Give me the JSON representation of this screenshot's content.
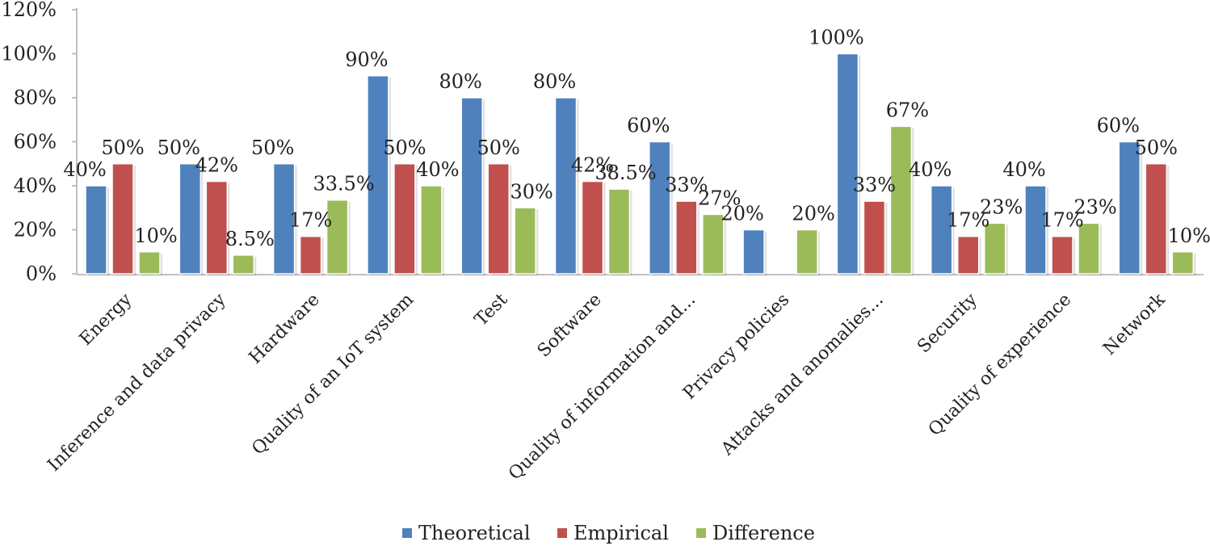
{
  "chart_data": {
    "type": "bar",
    "title": "",
    "xlabel": "",
    "ylabel": "",
    "ylim": [
      0,
      120
    ],
    "yticks": [
      "0%",
      "20%",
      "40%",
      "60%",
      "80%",
      "100%",
      "120%"
    ],
    "grid": false,
    "legend_position": "bottom",
    "categories": [
      "Energy",
      "Inference and data privacy",
      "Hardware",
      "Quality of an IoT system",
      "Test",
      "Software",
      "Quality of information and...",
      "Privacy policies",
      "Attacks and anomalies...",
      "Security",
      "Quality of experience",
      "Network"
    ],
    "series": [
      {
        "name": "Theoretical",
        "color": "#4F81BD",
        "values": [
          40,
          50,
          50,
          90,
          80,
          80,
          60,
          20,
          100,
          40,
          40,
          60
        ],
        "labels": [
          "40%",
          "50%",
          "50%",
          "90%",
          "80%",
          "80%",
          "60%",
          "20%",
          "100%",
          "40%",
          "40%",
          "60%"
        ]
      },
      {
        "name": "Empirical",
        "color": "#C0504D",
        "values": [
          50,
          42,
          17,
          50,
          50,
          42,
          33,
          0,
          33,
          17,
          17,
          50
        ],
        "labels": [
          "50%",
          "42%",
          "17%",
          "50%",
          "50%",
          "42%",
          "33%",
          "",
          "33%",
          "17%",
          "17%",
          "50%"
        ]
      },
      {
        "name": "Difference",
        "color": "#9BBB59",
        "values": [
          10,
          8.5,
          33.5,
          40,
          30,
          38.5,
          27,
          20,
          67,
          23,
          23,
          10
        ],
        "labels": [
          "10%",
          "8.5%",
          "33.5%",
          "40%",
          "30%",
          "38.5%",
          "27%",
          "20%",
          "67%",
          "23%",
          "23%",
          "10%"
        ]
      }
    ]
  }
}
